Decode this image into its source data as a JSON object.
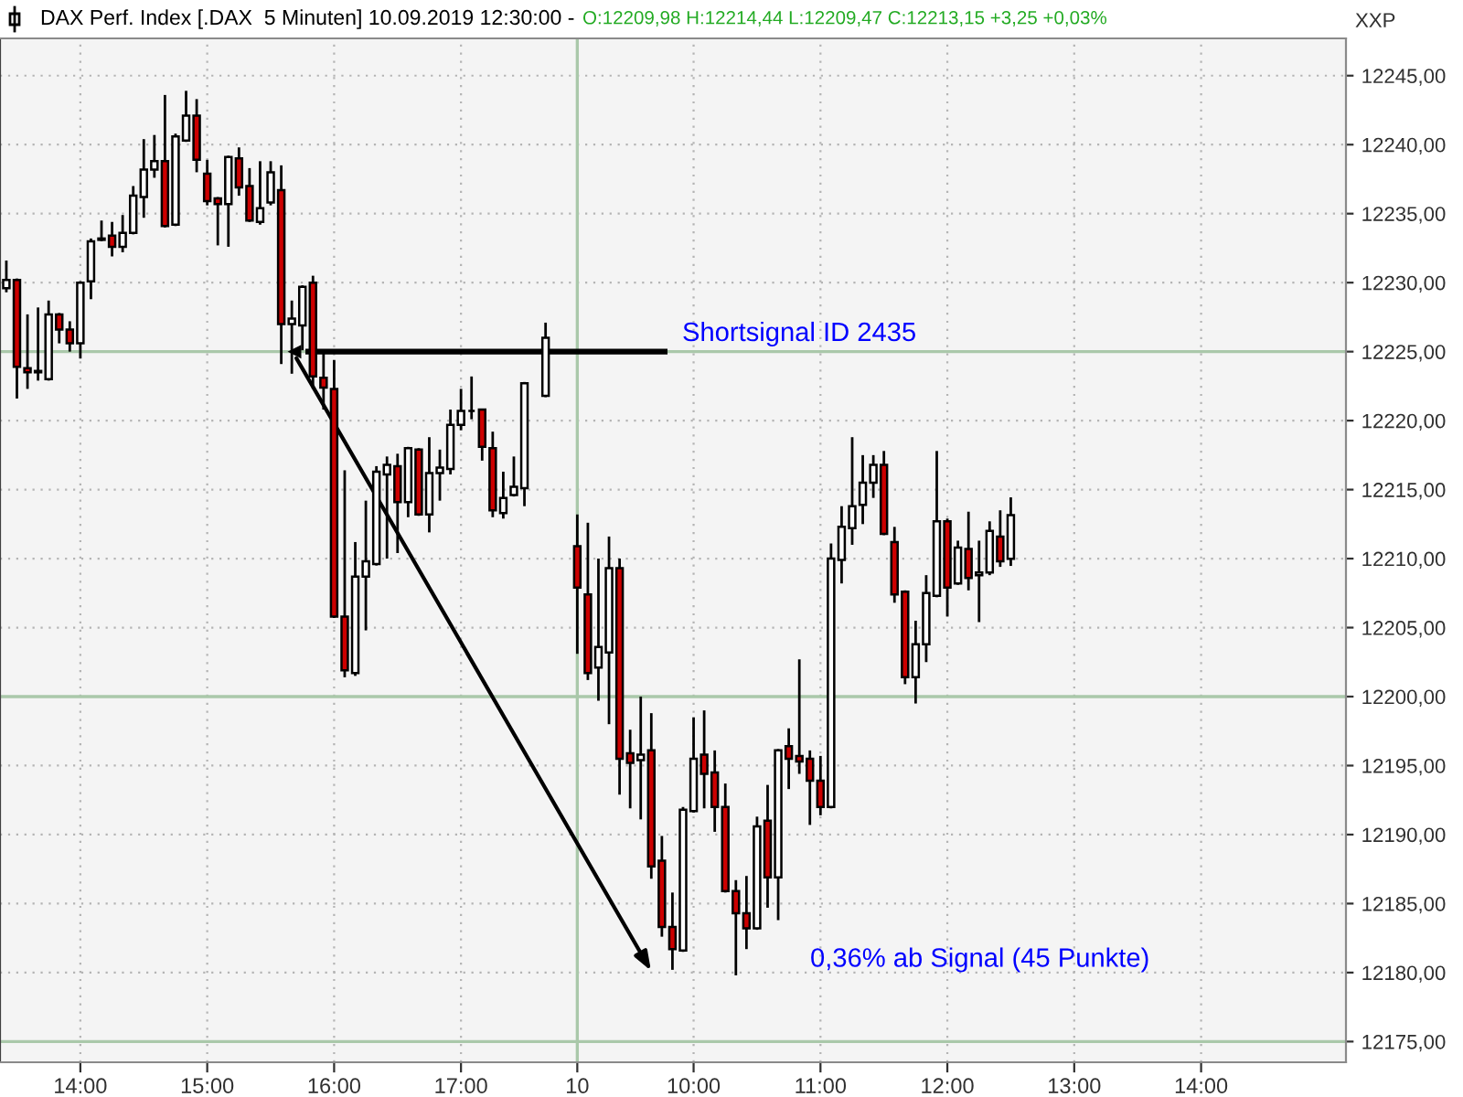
{
  "chart_data": {
    "type": "candlestick",
    "title": "DAX Perf. Index [.DAX  5 Minuten] 10.09.2019 12:30:00 -",
    "subtitle": "O:12209,98 H:12214,44 L:12209,47 C:12213,15 +3,25 +0,03%",
    "categories": [
      null,
      null,
      null,
      null,
      null,
      null,
      null,
      "14:00",
      null,
      null,
      null,
      null,
      null,
      null,
      null,
      null,
      null,
      null,
      null,
      "15:00",
      null,
      null,
      null,
      null,
      null,
      null,
      null,
      null,
      null,
      null,
      null,
      "16:00",
      null,
      null,
      null,
      null,
      null,
      null,
      null,
      null,
      null,
      null,
      null,
      "17:00",
      null,
      null,
      null,
      null,
      null,
      null,
      null,
      null,
      null,
      null,
      "10",
      null,
      null,
      null,
      null,
      null,
      null,
      null,
      null,
      null,
      null,
      "10:00",
      null,
      null,
      null,
      null,
      null,
      null,
      null,
      null,
      null,
      null,
      null,
      "11:00",
      null,
      null,
      null,
      null,
      null,
      null,
      null,
      null,
      null,
      null,
      null,
      "12:00",
      null,
      null,
      null,
      null,
      null,
      null,
      null,
      null,
      null,
      null,
      null,
      "13:00",
      null,
      null,
      null,
      null,
      null,
      null,
      null,
      null,
      null,
      null,
      null,
      "14:00",
      null,
      null,
      null,
      null,
      null,
      null,
      null,
      null,
      null,
      null,
      null,
      null,
      null
    ],
    "ohlc": [
      [
        12229.6,
        12231.6,
        12229.3,
        12230.2
      ],
      [
        12230.2,
        12230.3,
        12221.6,
        12223.9
      ],
      [
        12223.8,
        12227.7,
        12222.3,
        12223.5
      ],
      [
        12223.5,
        12228.2,
        12222.9,
        12223.6
      ],
      [
        12223.0,
        12228.7,
        12222.9,
        12227.7
      ],
      [
        12227.7,
        12227.8,
        12225.6,
        12226.6
      ],
      [
        12226.6,
        12227.2,
        12225.0,
        12225.6
      ],
      [
        12225.6,
        12230.1,
        12224.5,
        12230.0
      ],
      [
        12230.1,
        12233.2,
        12228.8,
        12233.0
      ],
      [
        12233.1,
        12234.5,
        12233.0,
        12233.2
      ],
      [
        12233.4,
        12234.4,
        12231.9,
        12232.6
      ],
      [
        12232.6,
        12234.9,
        12232.2,
        12233.6
      ],
      [
        12233.6,
        12237.0,
        12233.5,
        12236.3
      ],
      [
        12236.2,
        12240.4,
        12234.7,
        12238.2
      ],
      [
        12238.2,
        12240.7,
        12237.6,
        12238.8
      ],
      [
        12238.8,
        12243.6,
        12234.0,
        12234.1
      ],
      [
        12234.2,
        12240.8,
        12234.1,
        12240.6
      ],
      [
        12240.3,
        12243.9,
        12240.2,
        12242.1
      ],
      [
        12242.1,
        12243.3,
        12238.0,
        12238.9
      ],
      [
        12237.9,
        12238.9,
        12235.6,
        12235.9
      ],
      [
        12236.1,
        12236.2,
        12232.7,
        12235.7
      ],
      [
        12235.7,
        12239.2,
        12232.6,
        12239.1
      ],
      [
        12239.0,
        12239.8,
        12236.3,
        12236.9
      ],
      [
        12237.0,
        12238.3,
        12234.4,
        12234.5
      ],
      [
        12234.4,
        12238.8,
        12234.2,
        12235.4
      ],
      [
        12235.8,
        12238.8,
        12235.6,
        12238.0
      ],
      [
        12236.7,
        12238.5,
        12224.1,
        12227.0
      ],
      [
        12227.0,
        12228.7,
        12223.4,
        12227.4
      ],
      [
        12226.9,
        12229.8,
        12225.1,
        12229.7
      ],
      [
        12230.0,
        12230.5,
        12222.3,
        12223.2
      ],
      [
        12223.1,
        12224.9,
        12220.8,
        12222.4
      ],
      [
        12222.3,
        12224.4,
        12205.7,
        12205.8
      ],
      [
        12205.8,
        12216.4,
        12201.4,
        12201.9
      ],
      [
        12201.7,
        12211.2,
        12201.5,
        12208.7
      ],
      [
        12208.7,
        12214.2,
        12204.8,
        12209.8
      ],
      [
        12209.6,
        12216.7,
        12209.5,
        12216.3
      ],
      [
        12216.1,
        12217.4,
        12210.0,
        12216.8
      ],
      [
        12216.7,
        12217.6,
        12210.4,
        12214.1
      ],
      [
        12214.1,
        12218.1,
        12213.0,
        12218.0
      ],
      [
        12217.9,
        12218.0,
        12213.1,
        12213.2
      ],
      [
        12213.2,
        12218.8,
        12211.9,
        12216.2
      ],
      [
        12216.2,
        12217.9,
        12214.2,
        12216.6
      ],
      [
        12216.5,
        12220.8,
        12216.1,
        12219.7
      ],
      [
        12219.7,
        12222.3,
        12219.3,
        12220.7
      ],
      [
        12220.7,
        12223.2,
        12220.1,
        12220.7
      ],
      [
        12220.8,
        12220.8,
        12217.1,
        12218.1
      ],
      [
        12218.0,
        12219.2,
        12213.0,
        12213.5
      ],
      [
        12213.3,
        12216.3,
        12212.9,
        12214.4
      ],
      [
        12214.6,
        12217.4,
        12214.5,
        12215.2
      ],
      [
        12215.1,
        12222.8,
        12213.8,
        12222.7
      ],
      null,
      [
        12221.8,
        12227.1,
        12221.7,
        12226.0
      ],
      null,
      null,
      [
        12210.9,
        12213.2,
        12203.1,
        12207.9
      ],
      [
        12207.4,
        12212.6,
        12201.2,
        12201.7
      ],
      [
        12202.1,
        12210.0,
        12199.7,
        12203.6
      ],
      [
        12203.2,
        12211.6,
        12198.0,
        12209.3
      ],
      [
        12209.3,
        12210.0,
        12192.9,
        12195.5
      ],
      [
        12195.9,
        12197.6,
        12191.9,
        12195.2
      ],
      [
        12195.4,
        12200.0,
        12191.1,
        12195.8
      ],
      [
        12196.1,
        12198.8,
        12186.8,
        12187.7
      ],
      [
        12188.1,
        12189.9,
        12182.6,
        12183.3
      ],
      [
        12183.3,
        12185.8,
        12180.2,
        12181.7
      ],
      [
        12181.6,
        12192.0,
        12181.5,
        12191.8
      ],
      [
        12191.7,
        12198.5,
        12191.6,
        12195.5
      ],
      [
        12195.8,
        12199.0,
        12191.9,
        12194.4
      ],
      [
        12194.5,
        12196.1,
        12190.2,
        12192.0
      ],
      [
        12192.0,
        12193.7,
        12185.8,
        12185.9
      ],
      [
        12185.9,
        12186.7,
        12179.8,
        12184.3
      ],
      [
        12184.3,
        12187.0,
        12181.7,
        12183.2
      ],
      [
        12183.2,
        12191.3,
        12183.1,
        12190.6
      ],
      [
        12191.0,
        12193.6,
        12184.7,
        12186.9
      ],
      [
        12186.9,
        12196.2,
        12183.8,
        12196.1
      ],
      [
        12196.4,
        12197.7,
        12193.3,
        12195.5
      ],
      [
        12195.7,
        12202.7,
        12194.4,
        12195.3
      ],
      [
        12195.5,
        12196.1,
        12190.7,
        12193.9
      ],
      [
        12193.9,
        12195.7,
        12191.4,
        12192.0
      ],
      [
        12192.0,
        12211.1,
        12191.9,
        12210.0
      ],
      [
        12209.9,
        12213.8,
        12208.2,
        12212.3
      ],
      [
        12212.2,
        12218.8,
        12211.0,
        12213.8
      ],
      [
        12213.9,
        12217.5,
        12212.5,
        12215.5
      ],
      [
        12215.5,
        12217.5,
        12214.4,
        12216.8
      ],
      [
        12216.8,
        12217.8,
        12211.7,
        12211.8
      ],
      [
        12211.2,
        12212.3,
        12206.8,
        12207.4
      ],
      [
        12207.6,
        12207.7,
        12200.9,
        12201.4
      ],
      [
        12201.4,
        12205.5,
        12199.5,
        12203.8
      ],
      [
        12203.8,
        12208.8,
        12202.5,
        12207.5
      ],
      [
        12207.3,
        12217.8,
        12207.2,
        12212.7
      ],
      [
        12212.7,
        12212.9,
        12205.8,
        12207.9
      ],
      [
        12208.2,
        12211.3,
        12208.1,
        12210.8
      ],
      [
        12210.7,
        12213.4,
        12207.7,
        12208.6
      ],
      [
        12208.8,
        12211.3,
        12205.4,
        12209.0
      ],
      [
        12209.0,
        12212.7,
        12208.8,
        12212.0
      ],
      [
        12211.6,
        12213.5,
        12209.4,
        12209.8
      ],
      [
        12209.98,
        12214.44,
        12209.47,
        12213.15
      ],
      null,
      null,
      null,
      null,
      null,
      null,
      null,
      null,
      null,
      null,
      null,
      null,
      null,
      null,
      null,
      null,
      null,
      null,
      null,
      null,
      null,
      null,
      null,
      null,
      null,
      null,
      null,
      null,
      null,
      null,
      null
    ],
    "colors": [
      "#ffffff",
      "#cc0000",
      "#cc0000",
      "#ffffff",
      "#ffffff",
      "#cc0000",
      "#cc0000",
      "#ffffff",
      "#ffffff",
      "#ffffff",
      "#cc0000",
      "#ffffff",
      "#ffffff",
      "#ffffff",
      "#ffffff",
      "#cc0000",
      "#ffffff",
      "#ffffff",
      "#cc0000",
      "#cc0000",
      "#cc0000",
      "#ffffff",
      "#cc0000",
      "#cc0000",
      "#ffffff",
      "#ffffff",
      "#cc0000",
      "#ffffff",
      "#ffffff",
      "#cc0000",
      "#cc0000",
      "#cc0000",
      "#cc0000",
      "#ffffff",
      "#ffffff",
      "#ffffff",
      "#ffffff",
      "#cc0000",
      "#ffffff",
      "#cc0000",
      "#ffffff",
      "#ffffff",
      "#ffffff",
      "#ffffff",
      "#000000",
      "#cc0000",
      "#cc0000",
      "#ffffff",
      "#ffffff",
      "#ffffff",
      null,
      "#ffffff",
      null,
      null,
      "#cc0000",
      "#cc0000",
      "#ffffff",
      "#ffffff",
      "#cc0000",
      "#cc0000",
      "#ffffff",
      "#cc0000",
      "#cc0000",
      "#cc0000",
      "#ffffff",
      "#ffffff",
      "#cc0000",
      "#cc0000",
      "#cc0000",
      "#cc0000",
      "#cc0000",
      "#ffffff",
      "#cc0000",
      "#ffffff",
      "#cc0000",
      "#cc0000",
      "#cc0000",
      "#cc0000",
      "#ffffff",
      "#ffffff",
      "#ffffff",
      "#ffffff",
      "#ffffff",
      "#cc0000",
      "#cc0000",
      "#cc0000",
      "#ffffff",
      "#ffffff",
      "#ffffff",
      "#cc0000",
      "#ffffff",
      "#cc0000",
      "#ffffff",
      "#ffffff",
      "#cc0000",
      "#ffffff",
      null,
      null,
      null,
      null,
      null,
      null,
      null,
      null,
      null,
      null,
      null,
      null,
      null,
      null,
      null,
      null,
      null,
      null,
      null,
      null,
      null,
      null,
      null,
      null,
      null,
      null,
      null,
      null,
      null,
      null,
      null
    ],
    "ylim": [
      12173.5,
      12247.7
    ],
    "yticks": [
      {
        "value": 12175,
        "label": "12175,00"
      },
      {
        "value": 12180,
        "label": "12180,00"
      },
      {
        "value": 12185,
        "label": "12185,00"
      },
      {
        "value": 12190,
        "label": "12190,00"
      },
      {
        "value": 12195,
        "label": "12195,00"
      },
      {
        "value": 12200,
        "label": "12200,00"
      },
      {
        "value": 12205,
        "label": "12205,00"
      },
      {
        "value": 12210,
        "label": "12210,00"
      },
      {
        "value": 12215,
        "label": "12215,00"
      },
      {
        "value": 12220,
        "label": "12220,00"
      },
      {
        "value": 12225,
        "label": "12225,00"
      },
      {
        "value": 12230,
        "label": "12230,00"
      },
      {
        "value": 12235,
        "label": "12235,00"
      },
      {
        "value": 12240,
        "label": "12240,00"
      },
      {
        "value": 12245,
        "label": "12245,00"
      }
    ],
    "grid": true,
    "ref_lines": [
      {
        "axis": "y",
        "value": 12225,
        "label": "Shortsignal ID 2435",
        "color": "#000000"
      }
    ],
    "annotations": [
      "0,36% ab Signal (45 Punkte)",
      "XXP"
    ]
  }
}
